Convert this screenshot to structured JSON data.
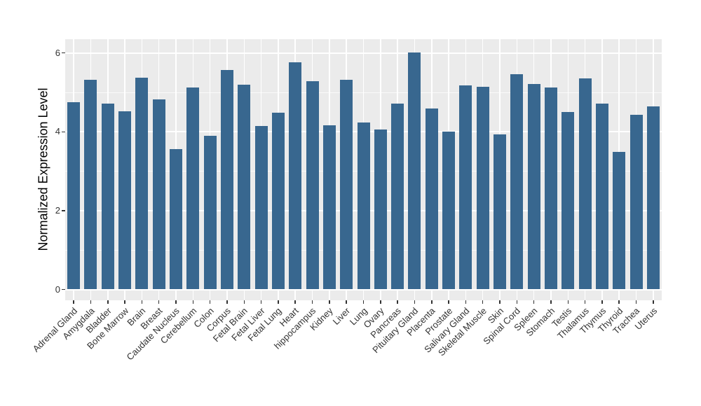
{
  "chart_data": {
    "type": "bar",
    "title": "",
    "xlabel": "",
    "ylabel": "Normalized Expression Level",
    "categories": [
      "Adrenal Gland",
      "Amygdala",
      "Bladder",
      "Bone Marrow",
      "Brain",
      "Breast",
      "Caudate Nucleus",
      "Cerebellum",
      "Colon",
      "Corpus",
      "Fetal Brain",
      "Fetal Liver",
      "Fetal Lung",
      "Heart",
      "hippocampus",
      "Kidney",
      "Liver",
      "Lung",
      "Ovary",
      "Pancreas",
      "Pituitary Gland",
      "Placenta",
      "Prostate",
      "Salivary Gland",
      "Skeletal Muscle",
      "Skin",
      "Spinal Cord",
      "Spleen",
      "Stomach",
      "Testis",
      "Thalamus",
      "Thymus",
      "Thyroid",
      "Trachea",
      "Uterus"
    ],
    "values": [
      4.75,
      5.32,
      4.72,
      4.52,
      5.38,
      4.83,
      3.56,
      5.13,
      3.89,
      5.57,
      5.19,
      4.14,
      4.48,
      5.77,
      5.29,
      4.17,
      5.32,
      4.24,
      4.05,
      4.72,
      6.02,
      4.59,
      4.01,
      5.18,
      5.15,
      3.93,
      5.46,
      5.22,
      5.12,
      4.5,
      5.36,
      4.72,
      3.49,
      4.44,
      4.65
    ],
    "ylim": [
      0,
      6.35
    ],
    "yticks": [
      0,
      2,
      4,
      6
    ],
    "yticks_minor": [
      1,
      3,
      5
    ],
    "x_tick_angle_deg": 45,
    "legend": "none",
    "grid": "on",
    "colors": {
      "bar_fill": "#38678F",
      "panel_background": "#EBEBEB",
      "gridline": "#FFFFFF",
      "axis_text": "#333333",
      "axis_title": "#000000",
      "figure_background": "#FFFFFF"
    }
  }
}
